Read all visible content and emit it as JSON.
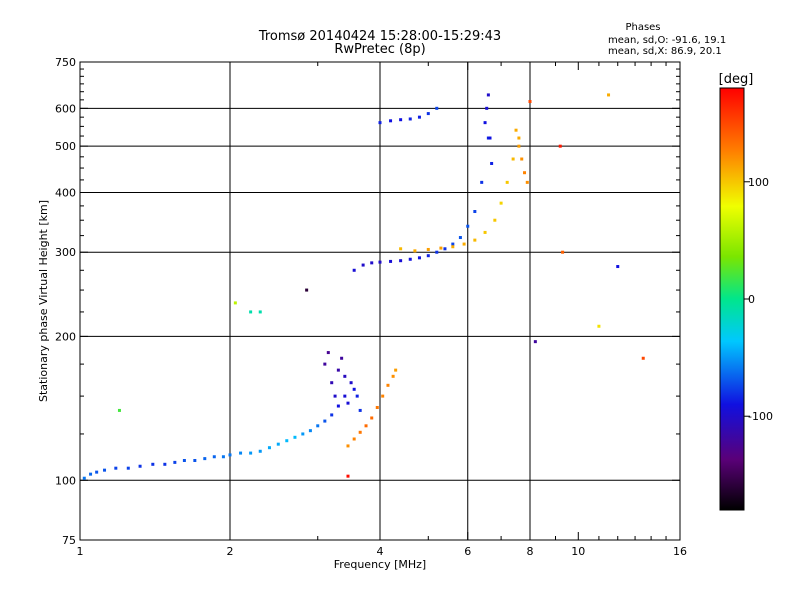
{
  "chart_data": {
    "type": "scatter",
    "title": "Tromsø 20140424 15:28:00-15:29:43",
    "subtitle": "RwPretec (8p)",
    "xlabel": "Frequency [MHz]",
    "ylabel": "Stationary phase Virtual Height [km]",
    "xscale": "log",
    "yscale": "log",
    "xlim": [
      1,
      16
    ],
    "ylim": [
      75,
      750
    ],
    "xticks": [
      1,
      2,
      4,
      6,
      8,
      10,
      16
    ],
    "yticks": [
      75,
      100,
      200,
      300,
      400,
      500,
      600,
      750
    ],
    "xgrid": [
      2,
      4,
      6,
      8
    ],
    "ygrid": [
      100,
      200,
      300,
      400,
      500,
      600
    ],
    "legend": {
      "title": "Phases",
      "lines": [
        "mean, sd,O: -91.6, 19.1",
        "mean, sd,X:  86.9, 20.1"
      ],
      "placement": "top-right"
    },
    "colorbar": {
      "label": "[deg]",
      "ticks": [
        100,
        0,
        -100
      ],
      "range": [
        -180,
        180
      ],
      "colormap": "rainbow (black-purple-blue-cyan-green-yellow-red)"
    },
    "series": [
      {
        "x": [
          1.02,
          1.05,
          1.08,
          1.12,
          1.18,
          1.25,
          1.32,
          1.4,
          1.48,
          1.55,
          1.62,
          1.7,
          1.78,
          1.86,
          1.94,
          2.0,
          2.1,
          2.2,
          2.3,
          2.4,
          2.5,
          2.6,
          2.7,
          2.8,
          2.9,
          3.0,
          3.1,
          3.2,
          3.3,
          3.4
        ],
        "y": [
          101,
          103,
          104,
          105,
          106,
          106,
          107,
          108,
          108,
          109,
          110,
          110,
          111,
          112,
          112,
          113,
          114,
          114,
          115,
          117,
          119,
          121,
          123,
          125,
          127,
          130,
          133,
          137,
          143,
          150
        ],
        "phase": [
          -60,
          -65,
          -70,
          -70,
          -75,
          -75,
          -80,
          -80,
          -80,
          -75,
          -70,
          -70,
          -65,
          -65,
          -60,
          -60,
          -55,
          -50,
          -50,
          -45,
          -45,
          -40,
          -40,
          -50,
          -55,
          -60,
          -70,
          -80,
          -90,
          -95
        ]
      },
      {
        "x": [
          3.1,
          3.15,
          3.2,
          3.25,
          3.3,
          3.35,
          3.4,
          3.45,
          3.5,
          3.55,
          3.6,
          3.65
        ],
        "y": [
          175,
          185,
          160,
          150,
          170,
          180,
          165,
          145,
          160,
          155,
          150,
          140
        ],
        "phase": [
          -120,
          -125,
          -110,
          -100,
          -115,
          -120,
          -105,
          -95,
          -100,
          -90,
          -85,
          -80
        ]
      },
      {
        "x": [
          3.45,
          3.55,
          3.65,
          3.75,
          3.85,
          3.95,
          4.05,
          4.15,
          4.25,
          4.3
        ],
        "y": [
          118,
          122,
          126,
          130,
          135,
          142,
          150,
          158,
          165,
          170
        ],
        "phase": [
          120,
          125,
          130,
          135,
          135,
          130,
          125,
          125,
          120,
          115
        ]
      },
      {
        "x": [
          3.55,
          3.7,
          3.85,
          4.0,
          4.2,
          4.4,
          4.6,
          4.8,
          5.0,
          5.2,
          5.4,
          5.6,
          5.8,
          6.0,
          6.2,
          6.4,
          6.6
        ],
        "y": [
          275,
          282,
          285,
          286,
          287,
          288,
          290,
          292,
          295,
          300,
          305,
          312,
          322,
          340,
          365,
          420,
          520
        ],
        "phase": [
          -95,
          -100,
          -100,
          -100,
          -95,
          -95,
          -90,
          -90,
          -85,
          -80,
          -80,
          -75,
          -70,
          -70,
          -75,
          -80,
          -85
        ]
      },
      {
        "x": [
          4.4,
          4.7,
          5.0,
          5.3,
          5.6,
          5.9,
          6.2,
          6.5,
          6.8,
          7.0,
          7.2,
          7.4,
          7.6
        ],
        "y": [
          305,
          302,
          304,
          306,
          308,
          312,
          318,
          330,
          350,
          380,
          420,
          470,
          520
        ],
        "phase": [
          105,
          110,
          115,
          115,
          110,
          110,
          105,
          100,
          100,
          95,
          100,
          105,
          110
        ]
      },
      {
        "x": [
          4.0,
          4.2,
          4.4,
          4.6,
          4.8,
          5.0,
          5.2
        ],
        "y": [
          560,
          565,
          568,
          570,
          575,
          585,
          600
        ],
        "phase": [
          -85,
          -90,
          -90,
          -85,
          -85,
          -80,
          -75
        ]
      },
      {
        "x": [
          6.5,
          6.55,
          6.6,
          6.65,
          6.7
        ],
        "y": [
          560,
          600,
          640,
          520,
          460
        ],
        "phase": [
          -90,
          -95,
          -100,
          -90,
          -85
        ]
      },
      {
        "x": [
          7.5,
          7.6,
          7.7,
          7.8,
          7.9
        ],
        "y": [
          540,
          500,
          470,
          440,
          420
        ],
        "phase": [
          110,
          115,
          120,
          125,
          120
        ]
      },
      {
        "x": [
          1.2,
          2.05,
          2.2,
          2.3,
          2.85,
          8.0,
          8.2,
          9.2,
          9.3,
          11.0,
          11.5,
          12.0,
          13.5,
          3.45
        ],
        "y": [
          140,
          235,
          225,
          225,
          250,
          620,
          195,
          500,
          300,
          210,
          640,
          280,
          180,
          102
        ],
        "phase": [
          20,
          60,
          -10,
          -10,
          -160,
          150,
          -120,
          170,
          140,
          90,
          110,
          -90,
          150,
          175
        ]
      }
    ]
  }
}
